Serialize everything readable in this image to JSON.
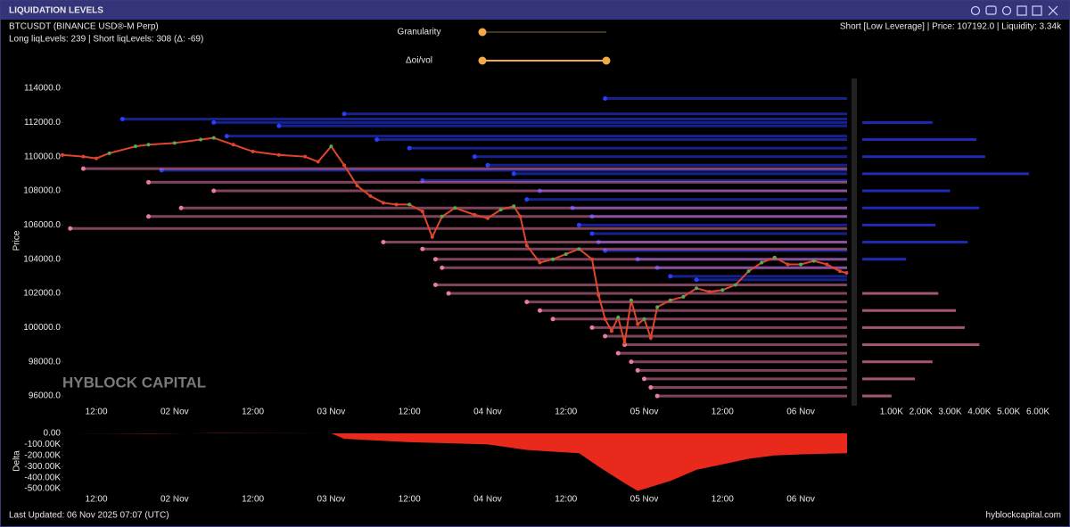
{
  "header": {
    "title": "LIQUIDATION LEVELS",
    "symbol": "BTCUSDT (BINANCE USD®-M Perp)",
    "counts": "Long liqLevels: 239 | Short liqLevels: 308 (Δ: -69)",
    "granularity": "Granularity",
    "oi_vol": "Δoi/vol",
    "info": "Short [Low Leverage] | Price: 107192.0 | Liquidity: 3.34k"
  },
  "footer": {
    "updated": "Last Updated: 06 Nov 2025 07:07 (UTC)",
    "site": "hyblockcapital.com"
  },
  "chart_data": [
    {
      "type": "line",
      "y_label": "Price",
      "watermark": "HYBLOCK CAPITAL",
      "color": "#e0452b",
      "x": [
        6.8,
        10,
        12,
        14,
        18,
        20,
        24,
        28,
        30,
        33,
        36,
        40,
        44,
        46,
        48,
        50,
        52,
        54,
        56,
        58,
        60,
        62,
        63.5,
        65,
        67,
        70,
        72,
        74,
        76,
        77,
        78,
        80,
        82,
        84,
        86,
        88,
        89,
        90,
        91,
        92,
        93,
        94,
        95,
        96,
        97,
        98,
        100,
        102,
        104,
        106,
        108,
        110,
        112,
        114,
        116,
        118,
        120,
        122,
        124,
        126,
        127
      ],
      "values": [
        110100,
        110000,
        109900,
        110200,
        110600,
        110700,
        110800,
        111000,
        111100,
        110700,
        110300,
        110100,
        110000,
        109700,
        110600,
        109500,
        108300,
        107700,
        107300,
        107200,
        107200,
        106800,
        105300,
        106500,
        107000,
        106600,
        106400,
        106900,
        107100,
        106500,
        104800,
        103800,
        104000,
        104300,
        104600,
        104000,
        101900,
        100500,
        99800,
        100600,
        99100,
        101600,
        100200,
        100500,
        99400,
        101200,
        101600,
        101800,
        102300,
        102100,
        102200,
        102500,
        103300,
        103800,
        104100,
        103700,
        103700,
        103900,
        103700,
        103300,
        103200
      ],
      "xlim": [
        6.8,
        127.1
      ],
      "xticks": [
        {
          "value": 12,
          "label": "12:00"
        },
        {
          "value": 24,
          "label": "02 Nov"
        },
        {
          "value": 36,
          "label": "12:00"
        },
        {
          "value": 48,
          "label": "03 Nov"
        },
        {
          "value": 60,
          "label": "12:00"
        },
        {
          "value": 72,
          "label": "04 Nov"
        },
        {
          "value": 84,
          "label": "12:00"
        },
        {
          "value": 96,
          "label": "05 Nov"
        },
        {
          "value": 108,
          "label": "12:00"
        },
        {
          "value": 120,
          "label": "06 Nov"
        }
      ],
      "ylim": [
        95430,
        114730
      ],
      "yticks": [
        {
          "value": 96000,
          "label": "96000.0"
        },
        {
          "value": 98000,
          "label": "98000.0"
        },
        {
          "value": 100000,
          "label": "100000.0"
        },
        {
          "value": 102000,
          "label": "102000.0"
        },
        {
          "value": 104000,
          "label": "104000.0"
        },
        {
          "value": 106000,
          "label": "106000.0"
        },
        {
          "value": 108000,
          "label": "108000.0"
        },
        {
          "value": 110000,
          "label": "110000.0"
        },
        {
          "value": 112000,
          "label": "112000.0"
        },
        {
          "value": 114000,
          "label": "114000.0"
        }
      ],
      "short_levels": {
        "color": "#2a3cff",
        "price": [
          113400,
          112500,
          112000,
          111800,
          111000,
          110500,
          110000,
          109500,
          109000,
          108600,
          108000,
          107500,
          107000,
          106500,
          106000,
          105500,
          105000,
          104500,
          104000,
          103500,
          103000,
          102800,
          112200,
          111200,
          109200
        ],
        "start": [
          90,
          50,
          30,
          40,
          55,
          60,
          70,
          72,
          76,
          62,
          80,
          78,
          85,
          88,
          86,
          88,
          89,
          90,
          95,
          98,
          100,
          104,
          16,
          32,
          22
        ]
      },
      "long_levels": {
        "color": "#e87aa8",
        "price": [
          109300,
          108500,
          108000,
          107000,
          106500,
          105800,
          105000,
          104600,
          104000,
          103500,
          102500,
          102000,
          101500,
          101000,
          100500,
          100000,
          99500,
          99000,
          98500,
          98000,
          97500,
          97000,
          96500,
          96000
        ],
        "start": [
          10,
          20,
          30,
          25,
          20,
          8,
          56,
          62,
          64,
          65,
          64,
          66,
          78,
          80,
          82,
          88,
          90,
          93,
          92,
          94,
          95,
          96,
          97,
          98
        ]
      }
    },
    {
      "type": "area",
      "y_label": "Delta",
      "color": "#e8291c",
      "x": [
        6.8,
        20,
        30,
        48,
        50,
        60,
        72,
        78,
        86,
        89,
        93,
        95,
        100,
        104,
        108,
        112,
        116,
        120,
        127.1
      ],
      "values": [
        0,
        -3000,
        2000,
        0,
        -50000,
        -80000,
        -100000,
        -150000,
        -180000,
        -300000,
        -450000,
        -520000,
        -430000,
        -330000,
        -280000,
        -230000,
        -200000,
        -190000,
        -180000
      ],
      "xlim": [
        6.8,
        127.1
      ],
      "xticks": [
        {
          "value": 12,
          "label": "12:00"
        },
        {
          "value": 24,
          "label": "02 Nov"
        },
        {
          "value": 36,
          "label": "12:00"
        },
        {
          "value": 48,
          "label": "03 Nov"
        },
        {
          "value": 60,
          "label": "12:00"
        },
        {
          "value": 72,
          "label": "04 Nov"
        },
        {
          "value": 84,
          "label": "12:00"
        },
        {
          "value": 96,
          "label": "05 Nov"
        },
        {
          "value": 108,
          "label": "12:00"
        },
        {
          "value": 120,
          "label": "06 Nov"
        }
      ],
      "ylim": [
        -556000,
        48000
      ],
      "yticks": [
        {
          "value": 0,
          "label": "0.00"
        },
        {
          "value": -100000,
          "label": "-100.00K"
        },
        {
          "value": -200000,
          "label": "-200.00K"
        },
        {
          "value": -300000,
          "label": "-300.00K"
        },
        {
          "value": -400000,
          "label": "-400.00K"
        },
        {
          "value": -500000,
          "label": "-500.00K"
        }
      ]
    },
    {
      "type": "bar",
      "series": [
        {
          "color": "#2a3cff",
          "y": [
            112000,
            111000,
            110000,
            109000,
            108000,
            107000,
            106000,
            105000,
            104000
          ],
          "values": [
            2400,
            3900,
            4200,
            5700,
            3000,
            4000,
            2500,
            3600,
            1500
          ]
        },
        {
          "color": "#e87aa8",
          "y": [
            102000,
            101000,
            100000,
            99000,
            98000,
            97000,
            96000
          ],
          "values": [
            2600,
            3200,
            3500,
            4000,
            2400,
            1800,
            1000
          ]
        }
      ],
      "xlim": [
        0,
        6700
      ],
      "xticks": [
        {
          "value": 1000,
          "label": "1.00K"
        },
        {
          "value": 2000,
          "label": "2.00K"
        },
        {
          "value": 3000,
          "label": "3.00K"
        },
        {
          "value": 4000,
          "label": "4.00K"
        },
        {
          "value": 5000,
          "label": "5.00K"
        },
        {
          "value": 6000,
          "label": "6.00K"
        }
      ],
      "ylim": [
        95430,
        114730
      ]
    }
  ]
}
